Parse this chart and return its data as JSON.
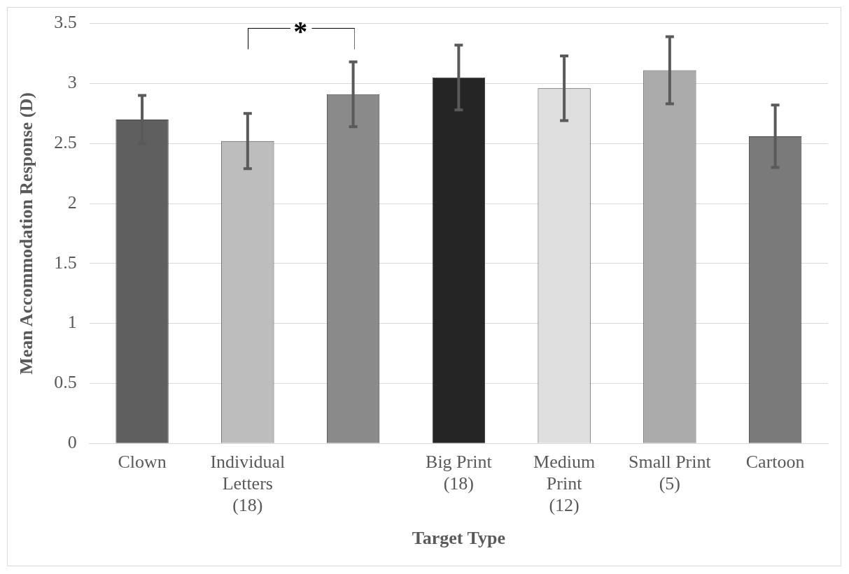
{
  "chart_data": {
    "type": "bar",
    "xlabel": "Target Type",
    "ylabel": "Mean Accommodation Response (D)",
    "categories": [
      "Clown",
      "Individual\nLetters\n(18)",
      null,
      "Big Print\n(18)",
      "Medium\nPrint\n(12)",
      "Small Print\n(5)",
      "Cartoon"
    ],
    "values": [
      2.7,
      2.52,
      2.91,
      3.05,
      2.96,
      3.11,
      2.56
    ],
    "errors": [
      0.2,
      0.23,
      0.27,
      0.27,
      0.27,
      0.28,
      0.26
    ],
    "colors": [
      "#5f5f5f",
      "#bdbdbd",
      "#8a8a8a",
      "#252525",
      "#dedede",
      "#ababab",
      "#7a7a7a"
    ],
    "ylim": [
      0,
      3.5
    ],
    "yticks": [
      0,
      0.5,
      1,
      1.5,
      2,
      2.5,
      3,
      3.5
    ],
    "grid": "y",
    "legend": false,
    "annotations": [
      "*"
    ]
  }
}
